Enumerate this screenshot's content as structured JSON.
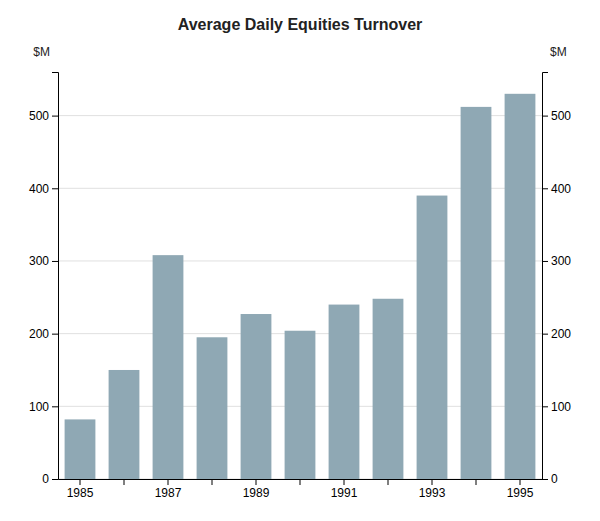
{
  "chart_data": {
    "type": "bar",
    "title": "Average Daily Equities Turnover",
    "categories": [
      "1985",
      null,
      "1987",
      null,
      "1989",
      null,
      "1991",
      null,
      "1993",
      null,
      "1995"
    ],
    "values": [
      82,
      150,
      308,
      195,
      227,
      204,
      240,
      248,
      390,
      512,
      530
    ],
    "color": "#8fa8b4",
    "y_label": "$M",
    "y2_label": "$M",
    "ylim": [
      0,
      560
    ],
    "yticks": [
      0,
      100,
      200,
      300,
      400,
      500
    ],
    "y2lim": [
      0,
      560
    ],
    "y2ticks": [
      0,
      100,
      200,
      300,
      400,
      500
    ],
    "grid": true
  }
}
